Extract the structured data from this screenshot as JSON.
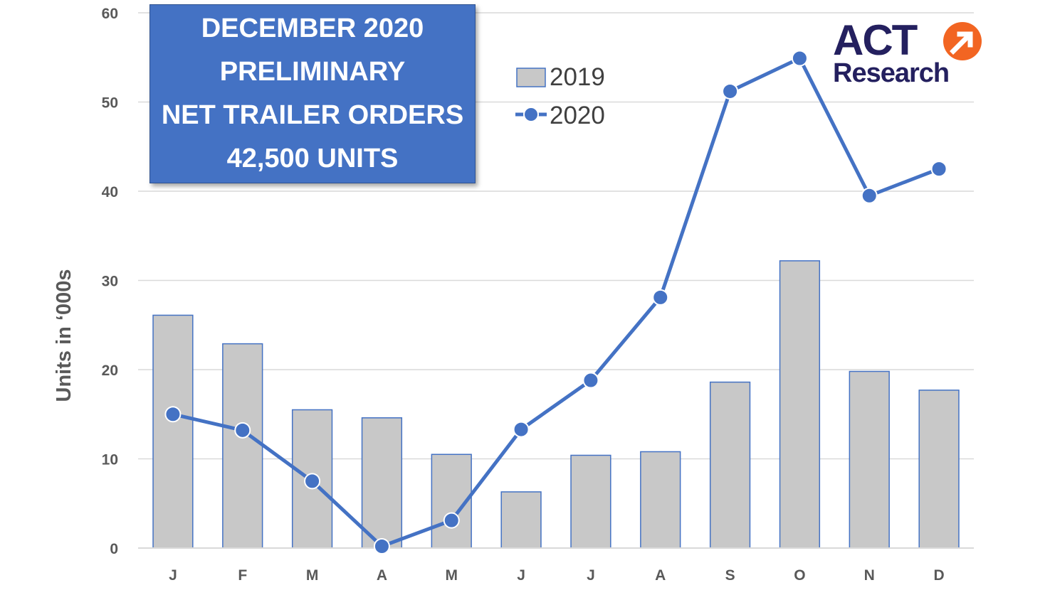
{
  "title_box": {
    "line1": "DECEMBER 2020",
    "line2": "PRELIMINARY",
    "line3": "NET TRAILER ORDERS",
    "line4": "42,500 UNITS"
  },
  "logo": {
    "word1": "ACT",
    "word2": "Research",
    "arrow_icon": "arrow-circle-icon"
  },
  "colors": {
    "bar_fill": "#c8c8c8",
    "bar_stroke": "#4472c4",
    "line": "#4472c4",
    "title_bg": "#4472c4",
    "logo_dark": "#24205f",
    "logo_orange": "#f26522"
  },
  "chart_data": {
    "type": "bar",
    "categories": [
      "J",
      "F",
      "M",
      "A",
      "M",
      "J",
      "J",
      "A",
      "S",
      "O",
      "N",
      "D"
    ],
    "series": [
      {
        "name": "2019",
        "type": "bar",
        "values": [
          26.1,
          22.9,
          15.5,
          14.6,
          10.5,
          6.3,
          10.4,
          10.8,
          18.6,
          32.2,
          19.8,
          17.7
        ]
      },
      {
        "name": "2020",
        "type": "line",
        "values": [
          15.0,
          13.2,
          7.5,
          0.2,
          3.1,
          13.3,
          18.8,
          28.1,
          51.2,
          54.9,
          39.5,
          42.5
        ]
      }
    ],
    "ylabel": "Units in ‘000s",
    "ylim": [
      0,
      60
    ],
    "yticks": [
      "0",
      "10",
      "20",
      "30",
      "40",
      "50",
      "60"
    ],
    "grid": true,
    "legend_position": "top-center"
  }
}
